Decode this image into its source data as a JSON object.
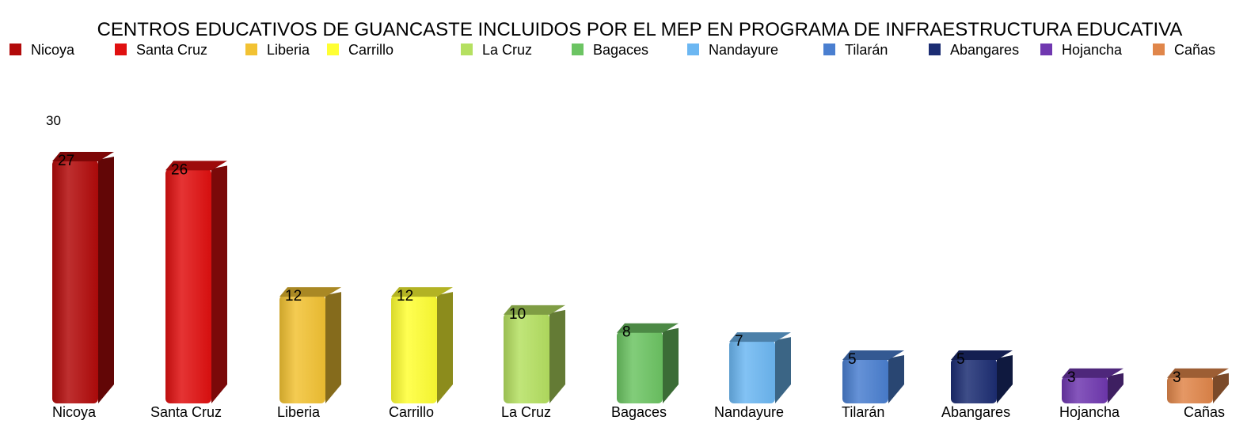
{
  "chart_data": {
    "type": "bar",
    "title": "CENTROS EDUCATIVOS DE GUANCASTE INCLUIDOS POR EL MEP EN PROGRAMA DE INFRAESTRUCTURA EDUCATIVA",
    "categories": [
      "Nicoya",
      "Santa Cruz",
      "Liberia",
      "Carrillo",
      "La Cruz",
      "Bagaces",
      "Nandayure",
      "Tilarán",
      "Abangares",
      "Hojancha",
      "Cañas"
    ],
    "values": [
      27,
      26,
      12,
      12,
      10,
      8,
      7,
      5,
      5,
      3,
      3
    ],
    "colors": [
      "#b20a0a",
      "#e01010",
      "#f2c233",
      "#ffff33",
      "#b5e061",
      "#6cc463",
      "#6cb7f2",
      "#4a7fd0",
      "#1c2d73",
      "#7038b0",
      "#e0864a"
    ],
    "legend_labels": [
      "Nicoya",
      "Santa Cruz",
      "Liberia",
      "Carrillo",
      "La Cruz",
      "Bagaces",
      "Nandayure",
      "Tilarán",
      "Abangares",
      "Hojancha",
      "Cañas"
    ],
    "legend_position": "top",
    "y_tick_label": "30",
    "ylim": [
      0,
      30
    ],
    "xlabel": "",
    "ylabel": "",
    "grid": false
  }
}
